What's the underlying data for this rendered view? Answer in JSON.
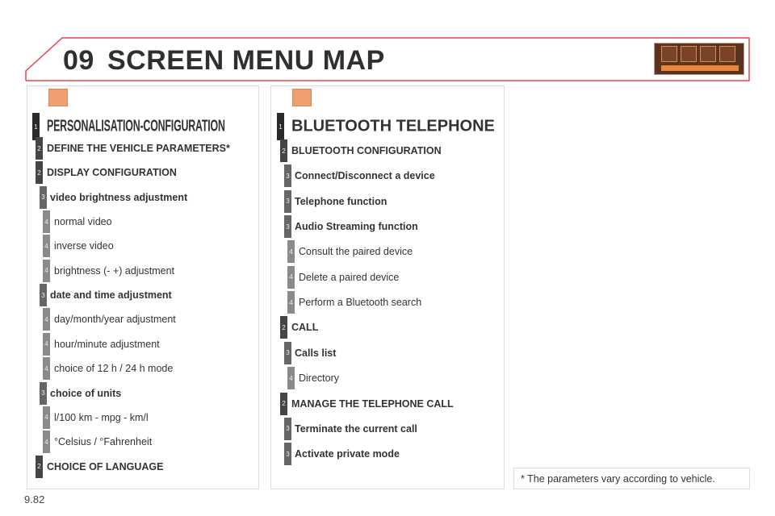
{
  "header": {
    "chapter": "09",
    "title": "SCREEN MENU MAP",
    "nav_icons": [
      "music-icon",
      "fuel-icon",
      "settings-icon",
      "phone-icon"
    ]
  },
  "colors": {
    "accent": "#e8434f",
    "icon": "#f0a070",
    "level1": "#2a2a2a",
    "level2": "#454545",
    "level3": "#666666",
    "level4": "#8a8a8a"
  },
  "left": {
    "icon": "settings-icon",
    "items": [
      {
        "level": "1",
        "label": "PERSONALISATION-CONFIGURATION"
      },
      {
        "level": "2",
        "label": "DEFINE THE VEHICLE PARAMETERS*"
      },
      {
        "level": "2",
        "label": "DISPLAY CONFIGURATION"
      },
      {
        "level": "3",
        "label": "video brightness adjustment"
      },
      {
        "level": "4",
        "label": "normal video"
      },
      {
        "level": "4",
        "label": "inverse video"
      },
      {
        "level": "4",
        "label": "brightness (- +) adjustment"
      },
      {
        "level": "3",
        "label": "date and time adjustment"
      },
      {
        "level": "4",
        "label": "day/month/year adjustment"
      },
      {
        "level": "4",
        "label": "hour/minute adjustment"
      },
      {
        "level": "4",
        "label": "choice of 12 h / 24 h mode"
      },
      {
        "level": "3",
        "label": "choice of units"
      },
      {
        "level": "4",
        "label": "l/100 km - mpg - km/l"
      },
      {
        "level": "4",
        "label": "°Celsius / °Fahrenheit"
      },
      {
        "level": "2",
        "label": "CHOICE OF LANGUAGE"
      }
    ]
  },
  "right": {
    "icon": "bluetooth-phone-icon",
    "items": [
      {
        "level": "1",
        "label": "BLUETOOTH TELEPHONE"
      },
      {
        "level": "2",
        "label": "BLUETOOTH CONFIGURATION"
      },
      {
        "level": "3",
        "label": "Connect/Disconnect a device"
      },
      {
        "level": "3",
        "label": "Telephone function"
      },
      {
        "level": "3",
        "label": "Audio Streaming function"
      },
      {
        "level": "4",
        "label": "Consult the paired device"
      },
      {
        "level": "4",
        "label": "Delete a paired device"
      },
      {
        "level": "4",
        "label": "Perform a Bluetooth search"
      },
      {
        "level": "2",
        "label": "CALL"
      },
      {
        "level": "3",
        "label": "Calls list"
      },
      {
        "level": "4",
        "label": "Directory"
      },
      {
        "level": "2",
        "label": "MANAGE THE TELEPHONE CALL"
      },
      {
        "level": "3",
        "label": "Terminate the current call"
      },
      {
        "level": "3",
        "label": "Activate private mode"
      }
    ]
  },
  "footnote": "* The parameters vary according to vehicle.",
  "page_number": "9.82"
}
